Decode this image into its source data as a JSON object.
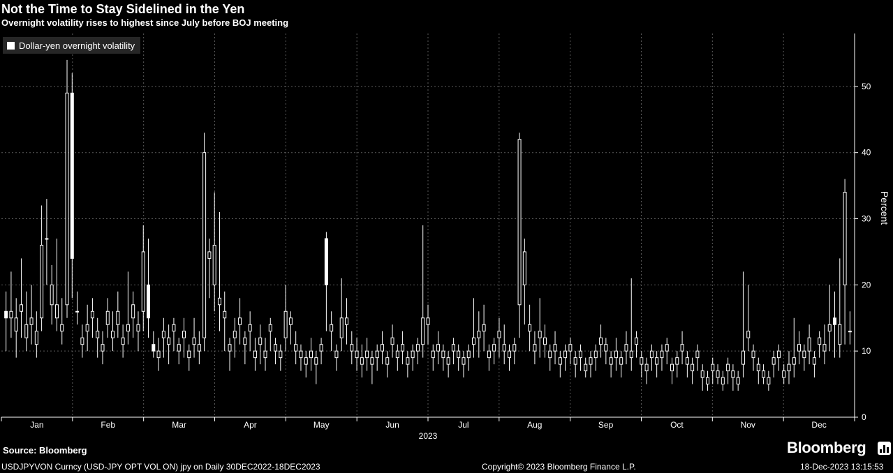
{
  "header": {
    "title": "Not the Time to Stay Sidelined in the Yen",
    "subtitle": "Overnight volatility rises to highest since July before BOJ meeting"
  },
  "footer": {
    "source": "Source: Bloomberg",
    "brand": "Bloomberg",
    "ticker": "USDJPYVON Curncy (USD-JPY OPT VOL ON) jpy on  Daily 30DEC2022-18DEC2023",
    "copyright": "Copyright© 2023 Bloomberg Finance L.P.",
    "timestamp": "18-Dec-2023 13:15:53"
  },
  "colors": {
    "background": "#000000",
    "series": "#ffffff",
    "grid": "#5a5a5a"
  },
  "chart_data": {
    "type": "candlestick",
    "legend": [
      "Dollar-yen overnight volatility"
    ],
    "legend_position": "top-left",
    "ylabel": "Percent",
    "xlabel": "2023",
    "ylim": [
      0,
      58
    ],
    "yticks": [
      0,
      10,
      20,
      30,
      40,
      50
    ],
    "months": [
      "Jan",
      "Feb",
      "Mar",
      "Apr",
      "May",
      "Jun",
      "Jul",
      "Aug",
      "Sep",
      "Oct",
      "Nov",
      "Dec"
    ],
    "grid": true,
    "series": [
      {
        "name": "Dollar-yen overnight volatility",
        "values": [
          [
            16,
            19,
            10,
            15
          ],
          [
            15,
            22,
            12,
            16
          ],
          [
            13,
            18,
            9,
            15
          ],
          [
            16,
            24,
            12,
            17
          ],
          [
            12,
            19,
            10,
            14
          ],
          [
            14,
            20,
            11,
            15
          ],
          [
            11,
            16,
            9,
            13
          ],
          [
            15,
            32,
            13,
            26
          ],
          [
            27,
            33,
            20,
            27
          ],
          [
            17,
            23,
            14,
            20
          ],
          [
            15,
            27,
            13,
            17
          ],
          [
            13,
            18,
            11,
            14
          ],
          [
            17,
            54,
            15,
            49
          ],
          [
            49,
            52,
            18,
            24
          ],
          [
            16,
            19,
            14,
            16
          ],
          [
            11,
            14,
            9,
            12
          ],
          [
            13,
            17,
            10,
            14
          ],
          [
            15,
            18,
            12,
            16
          ],
          [
            12,
            15,
            9,
            13
          ],
          [
            10,
            13,
            8,
            11
          ],
          [
            14,
            18,
            12,
            16
          ],
          [
            12,
            16,
            10,
            13
          ],
          [
            14,
            19,
            12,
            16
          ],
          [
            11,
            14,
            9,
            12
          ],
          [
            13,
            22,
            11,
            14
          ],
          [
            15,
            19,
            12,
            17
          ],
          [
            13,
            16,
            10,
            14
          ],
          [
            16,
            29,
            13,
            25
          ],
          [
            20,
            27,
            12,
            15
          ],
          [
            11,
            13,
            9,
            10
          ],
          [
            9,
            12,
            7,
            10
          ],
          [
            12,
            15,
            9,
            13
          ],
          [
            11,
            14,
            8,
            12
          ],
          [
            13,
            15,
            10,
            14
          ],
          [
            10,
            12,
            8,
            11
          ],
          [
            12,
            15,
            9,
            13
          ],
          [
            9,
            11,
            7,
            10
          ],
          [
            11,
            15,
            9,
            12
          ],
          [
            10,
            13,
            8,
            11
          ],
          [
            12,
            43,
            10,
            40
          ],
          [
            24,
            27,
            18,
            25
          ],
          [
            20,
            34,
            16,
            26
          ],
          [
            17,
            31,
            13,
            18
          ],
          [
            15,
            19,
            10,
            16
          ],
          [
            10,
            12,
            7,
            11
          ],
          [
            12,
            15,
            9,
            13
          ],
          [
            14,
            18,
            11,
            15
          ],
          [
            11,
            13,
            8,
            12
          ],
          [
            13,
            16,
            10,
            14
          ],
          [
            9,
            12,
            7,
            10
          ],
          [
            11,
            14,
            8,
            12
          ],
          [
            9,
            12,
            7,
            10
          ],
          [
            13,
            15,
            10,
            14
          ],
          [
            10,
            12,
            8,
            11
          ],
          [
            9,
            11,
            7,
            10
          ],
          [
            12,
            20,
            10,
            16
          ],
          [
            14,
            16,
            11,
            15
          ],
          [
            10,
            13,
            8,
            11
          ],
          [
            9,
            11,
            7,
            10
          ],
          [
            8,
            10,
            6,
            9
          ],
          [
            9,
            12,
            7,
            10
          ],
          [
            8,
            10,
            5,
            9
          ],
          [
            10,
            12,
            8,
            11
          ],
          [
            27,
            28,
            13,
            20
          ],
          [
            13,
            16,
            10,
            14
          ],
          [
            9,
            11,
            7,
            10
          ],
          [
            12,
            21,
            10,
            15
          ],
          [
            14,
            18,
            11,
            15
          ],
          [
            10,
            13,
            8,
            11
          ],
          [
            9,
            12,
            7,
            10
          ],
          [
            8,
            11,
            6,
            9
          ],
          [
            9,
            12,
            7,
            10
          ],
          [
            8,
            10,
            5,
            9
          ],
          [
            9,
            11,
            7,
            10
          ],
          [
            10,
            13,
            8,
            11
          ],
          [
            8,
            10,
            6,
            9
          ],
          [
            11,
            14,
            9,
            12
          ],
          [
            9,
            11,
            7,
            10
          ],
          [
            10,
            13,
            8,
            11
          ],
          [
            8,
            10,
            6,
            9
          ],
          [
            9,
            11,
            7,
            10
          ],
          [
            10,
            12,
            8,
            11
          ],
          [
            11,
            29,
            9,
            15
          ],
          [
            14,
            17,
            11,
            15
          ],
          [
            9,
            11,
            7,
            10
          ],
          [
            10,
            13,
            8,
            11
          ],
          [
            9,
            11,
            7,
            10
          ],
          [
            8,
            10,
            6,
            9
          ],
          [
            10,
            12,
            8,
            11
          ],
          [
            9,
            11,
            7,
            10
          ],
          [
            8,
            10,
            6,
            9
          ],
          [
            9,
            11,
            7,
            10
          ],
          [
            11,
            18,
            9,
            12
          ],
          [
            12,
            16,
            9,
            13
          ],
          [
            13,
            17,
            10,
            14
          ],
          [
            9,
            11,
            7,
            10
          ],
          [
            10,
            12,
            8,
            11
          ],
          [
            12,
            15,
            9,
            13
          ],
          [
            10,
            14,
            8,
            11
          ],
          [
            9,
            11,
            7,
            10
          ],
          [
            10,
            12,
            8,
            11
          ],
          [
            17,
            43,
            12,
            42
          ],
          [
            20,
            27,
            14,
            25
          ],
          [
            13,
            17,
            10,
            14
          ],
          [
            10,
            13,
            8,
            11
          ],
          [
            12,
            18,
            9,
            13
          ],
          [
            11,
            14,
            9,
            12
          ],
          [
            9,
            11,
            7,
            10
          ],
          [
            10,
            13,
            8,
            11
          ],
          [
            8,
            10,
            6,
            9
          ],
          [
            9,
            11,
            7,
            10
          ],
          [
            10,
            12,
            8,
            11
          ],
          [
            8,
            10,
            6,
            9
          ],
          [
            9,
            11,
            7,
            10
          ],
          [
            7,
            9,
            6,
            8
          ],
          [
            8,
            10,
            6,
            9
          ],
          [
            9,
            11,
            7,
            10
          ],
          [
            11,
            14,
            9,
            12
          ],
          [
            10,
            12,
            8,
            11
          ],
          [
            8,
            10,
            6,
            9
          ],
          [
            9,
            12,
            7,
            10
          ],
          [
            8,
            10,
            6,
            9
          ],
          [
            10,
            13,
            8,
            11
          ],
          [
            9,
            21,
            7,
            10
          ],
          [
            11,
            13,
            9,
            12
          ],
          [
            8,
            10,
            6,
            9
          ],
          [
            7,
            9,
            5,
            8
          ],
          [
            9,
            11,
            7,
            10
          ],
          [
            8,
            10,
            6,
            9
          ],
          [
            9,
            11,
            7,
            10
          ],
          [
            10,
            12,
            8,
            11
          ],
          [
            7,
            9,
            5,
            8
          ],
          [
            8,
            10,
            6,
            9
          ],
          [
            10,
            13,
            8,
            11
          ],
          [
            8,
            10,
            6,
            9
          ],
          [
            7,
            9,
            5,
            8
          ],
          [
            9,
            11,
            7,
            10
          ],
          [
            6,
            8,
            4,
            7
          ],
          [
            5,
            7,
            4,
            6
          ],
          [
            7,
            9,
            5,
            8
          ],
          [
            6,
            8,
            5,
            7
          ],
          [
            5,
            7,
            4,
            6
          ],
          [
            7,
            9,
            5,
            8
          ],
          [
            6,
            8,
            4,
            7
          ],
          [
            5,
            7,
            4,
            6
          ],
          [
            8,
            22,
            6,
            10
          ],
          [
            12,
            20,
            10,
            13
          ],
          [
            9,
            11,
            7,
            10
          ],
          [
            7,
            9,
            5,
            8
          ],
          [
            6,
            8,
            5,
            7
          ],
          [
            5,
            7,
            4,
            6
          ],
          [
            8,
            10,
            6,
            9
          ],
          [
            9,
            11,
            7,
            10
          ],
          [
            6,
            8,
            5,
            7
          ],
          [
            7,
            10,
            5,
            8
          ],
          [
            8,
            15,
            6,
            9
          ],
          [
            10,
            13,
            8,
            11
          ],
          [
            9,
            11,
            7,
            10
          ],
          [
            10,
            14,
            8,
            12
          ],
          [
            8,
            10,
            6,
            9
          ],
          [
            11,
            13,
            9,
            12
          ],
          [
            10,
            14,
            8,
            11
          ],
          [
            13,
            20,
            10,
            14
          ],
          [
            15,
            19,
            9,
            14
          ],
          [
            11,
            24,
            9,
            14
          ],
          [
            20,
            36,
            11,
            34
          ],
          [
            13,
            16,
            11,
            13
          ]
        ]
      }
    ]
  }
}
